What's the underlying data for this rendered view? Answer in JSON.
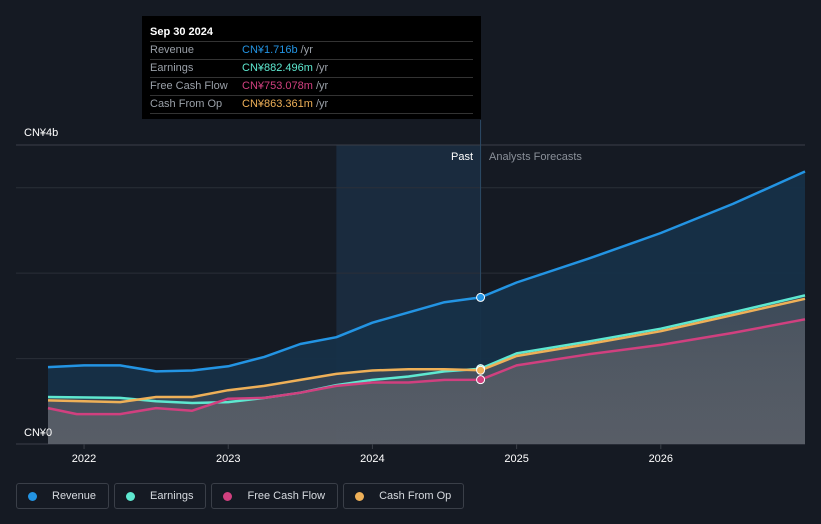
{
  "tooltip": {
    "date": "Sep 30 2024",
    "unit": "/yr",
    "rows": [
      {
        "label": "Revenue",
        "value": "CN¥1.716b",
        "color": "#2394e3"
      },
      {
        "label": "Earnings",
        "value": "CN¥882.496m",
        "color": "#5ee8d0"
      },
      {
        "label": "Free Cash Flow",
        "value": "CN¥753.078m",
        "color": "#d0407f"
      },
      {
        "label": "Cash From Op",
        "value": "CN¥863.361m",
        "color": "#eeb058"
      }
    ]
  },
  "chart_data": {
    "type": "line",
    "y_top_label": "CN¥4b",
    "y_zero_label": "CN¥0",
    "ylim": [
      0,
      3.5
    ],
    "xlim": [
      2021.75,
      2027.0
    ],
    "x_ticks": [
      "2022",
      "2023",
      "2024",
      "2025",
      "2026"
    ],
    "past_label": "Past",
    "forecast_label": "Analysts Forecasts",
    "divider_x": 2024.75,
    "past_highlight_from": 2023.75,
    "grid": true,
    "series": [
      {
        "name": "Revenue",
        "color": "#2394e3",
        "points": [
          [
            2021.75,
            0.9
          ],
          [
            2022.0,
            0.92
          ],
          [
            2022.25,
            0.92
          ],
          [
            2022.5,
            0.85
          ],
          [
            2022.75,
            0.86
          ],
          [
            2023.0,
            0.91
          ],
          [
            2023.25,
            1.02
          ],
          [
            2023.5,
            1.17
          ],
          [
            2023.75,
            1.25
          ],
          [
            2024.0,
            1.42
          ],
          [
            2024.25,
            1.54
          ],
          [
            2024.5,
            1.66
          ],
          [
            2024.75,
            1.716
          ],
          [
            2025.0,
            1.89
          ],
          [
            2025.5,
            2.17
          ],
          [
            2026.0,
            2.47
          ],
          [
            2026.5,
            2.81
          ],
          [
            2027.0,
            3.19
          ]
        ]
      },
      {
        "name": "Earnings",
        "color": "#5ee8d0",
        "points": [
          [
            2021.75,
            0.55
          ],
          [
            2022.25,
            0.54
          ],
          [
            2022.5,
            0.5
          ],
          [
            2022.75,
            0.48
          ],
          [
            2023.0,
            0.49
          ],
          [
            2023.25,
            0.54
          ],
          [
            2023.5,
            0.6
          ],
          [
            2023.75,
            0.69
          ],
          [
            2024.0,
            0.75
          ],
          [
            2024.25,
            0.79
          ],
          [
            2024.5,
            0.85
          ],
          [
            2024.75,
            0.882
          ],
          [
            2025.0,
            1.06
          ],
          [
            2025.5,
            1.2
          ],
          [
            2026.0,
            1.35
          ],
          [
            2026.5,
            1.54
          ],
          [
            2027.0,
            1.74
          ]
        ]
      },
      {
        "name": "Free Cash Flow",
        "color": "#d0407f",
        "points": [
          [
            2021.75,
            0.42
          ],
          [
            2021.95,
            0.35
          ],
          [
            2022.25,
            0.35
          ],
          [
            2022.5,
            0.42
          ],
          [
            2022.75,
            0.39
          ],
          [
            2023.0,
            0.53
          ],
          [
            2023.25,
            0.54
          ],
          [
            2023.5,
            0.6
          ],
          [
            2023.75,
            0.68
          ],
          [
            2024.0,
            0.72
          ],
          [
            2024.25,
            0.72
          ],
          [
            2024.5,
            0.75
          ],
          [
            2024.75,
            0.753
          ],
          [
            2025.0,
            0.92
          ],
          [
            2025.5,
            1.05
          ],
          [
            2026.0,
            1.16
          ],
          [
            2026.5,
            1.3
          ],
          [
            2027.0,
            1.46
          ]
        ]
      },
      {
        "name": "Cash From Op",
        "color": "#eeb058",
        "points": [
          [
            2021.75,
            0.51
          ],
          [
            2022.25,
            0.49
          ],
          [
            2022.5,
            0.55
          ],
          [
            2022.75,
            0.55
          ],
          [
            2023.0,
            0.63
          ],
          [
            2023.25,
            0.68
          ],
          [
            2023.5,
            0.75
          ],
          [
            2023.75,
            0.82
          ],
          [
            2024.0,
            0.86
          ],
          [
            2024.25,
            0.875
          ],
          [
            2024.5,
            0.875
          ],
          [
            2024.75,
            0.863
          ],
          [
            2025.0,
            1.03
          ],
          [
            2025.5,
            1.17
          ],
          [
            2026.0,
            1.32
          ],
          [
            2026.5,
            1.51
          ],
          [
            2027.0,
            1.7
          ]
        ]
      }
    ]
  }
}
